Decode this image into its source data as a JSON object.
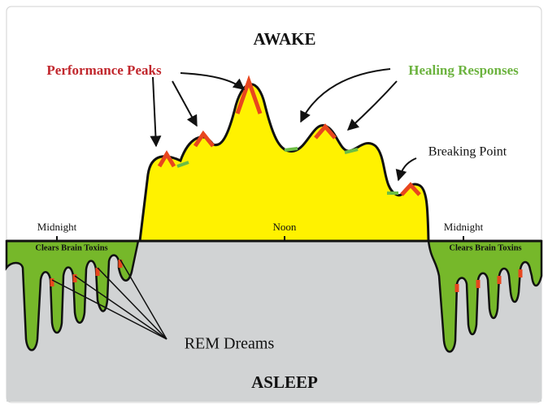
{
  "labels": {
    "awake": "AWAKE",
    "asleep": "ASLEEP",
    "performance_peaks": "Performance Peaks",
    "healing_responses": "Healing Responses",
    "breaking_point": "Breaking Point",
    "times": [
      "Midnight",
      "Noon",
      "Midnight"
    ],
    "clears_brain_toxins": [
      "Clears Brain Toxins",
      "Clears Brain Toxins"
    ],
    "rem_dreams": "REM Dreams"
  }
}
